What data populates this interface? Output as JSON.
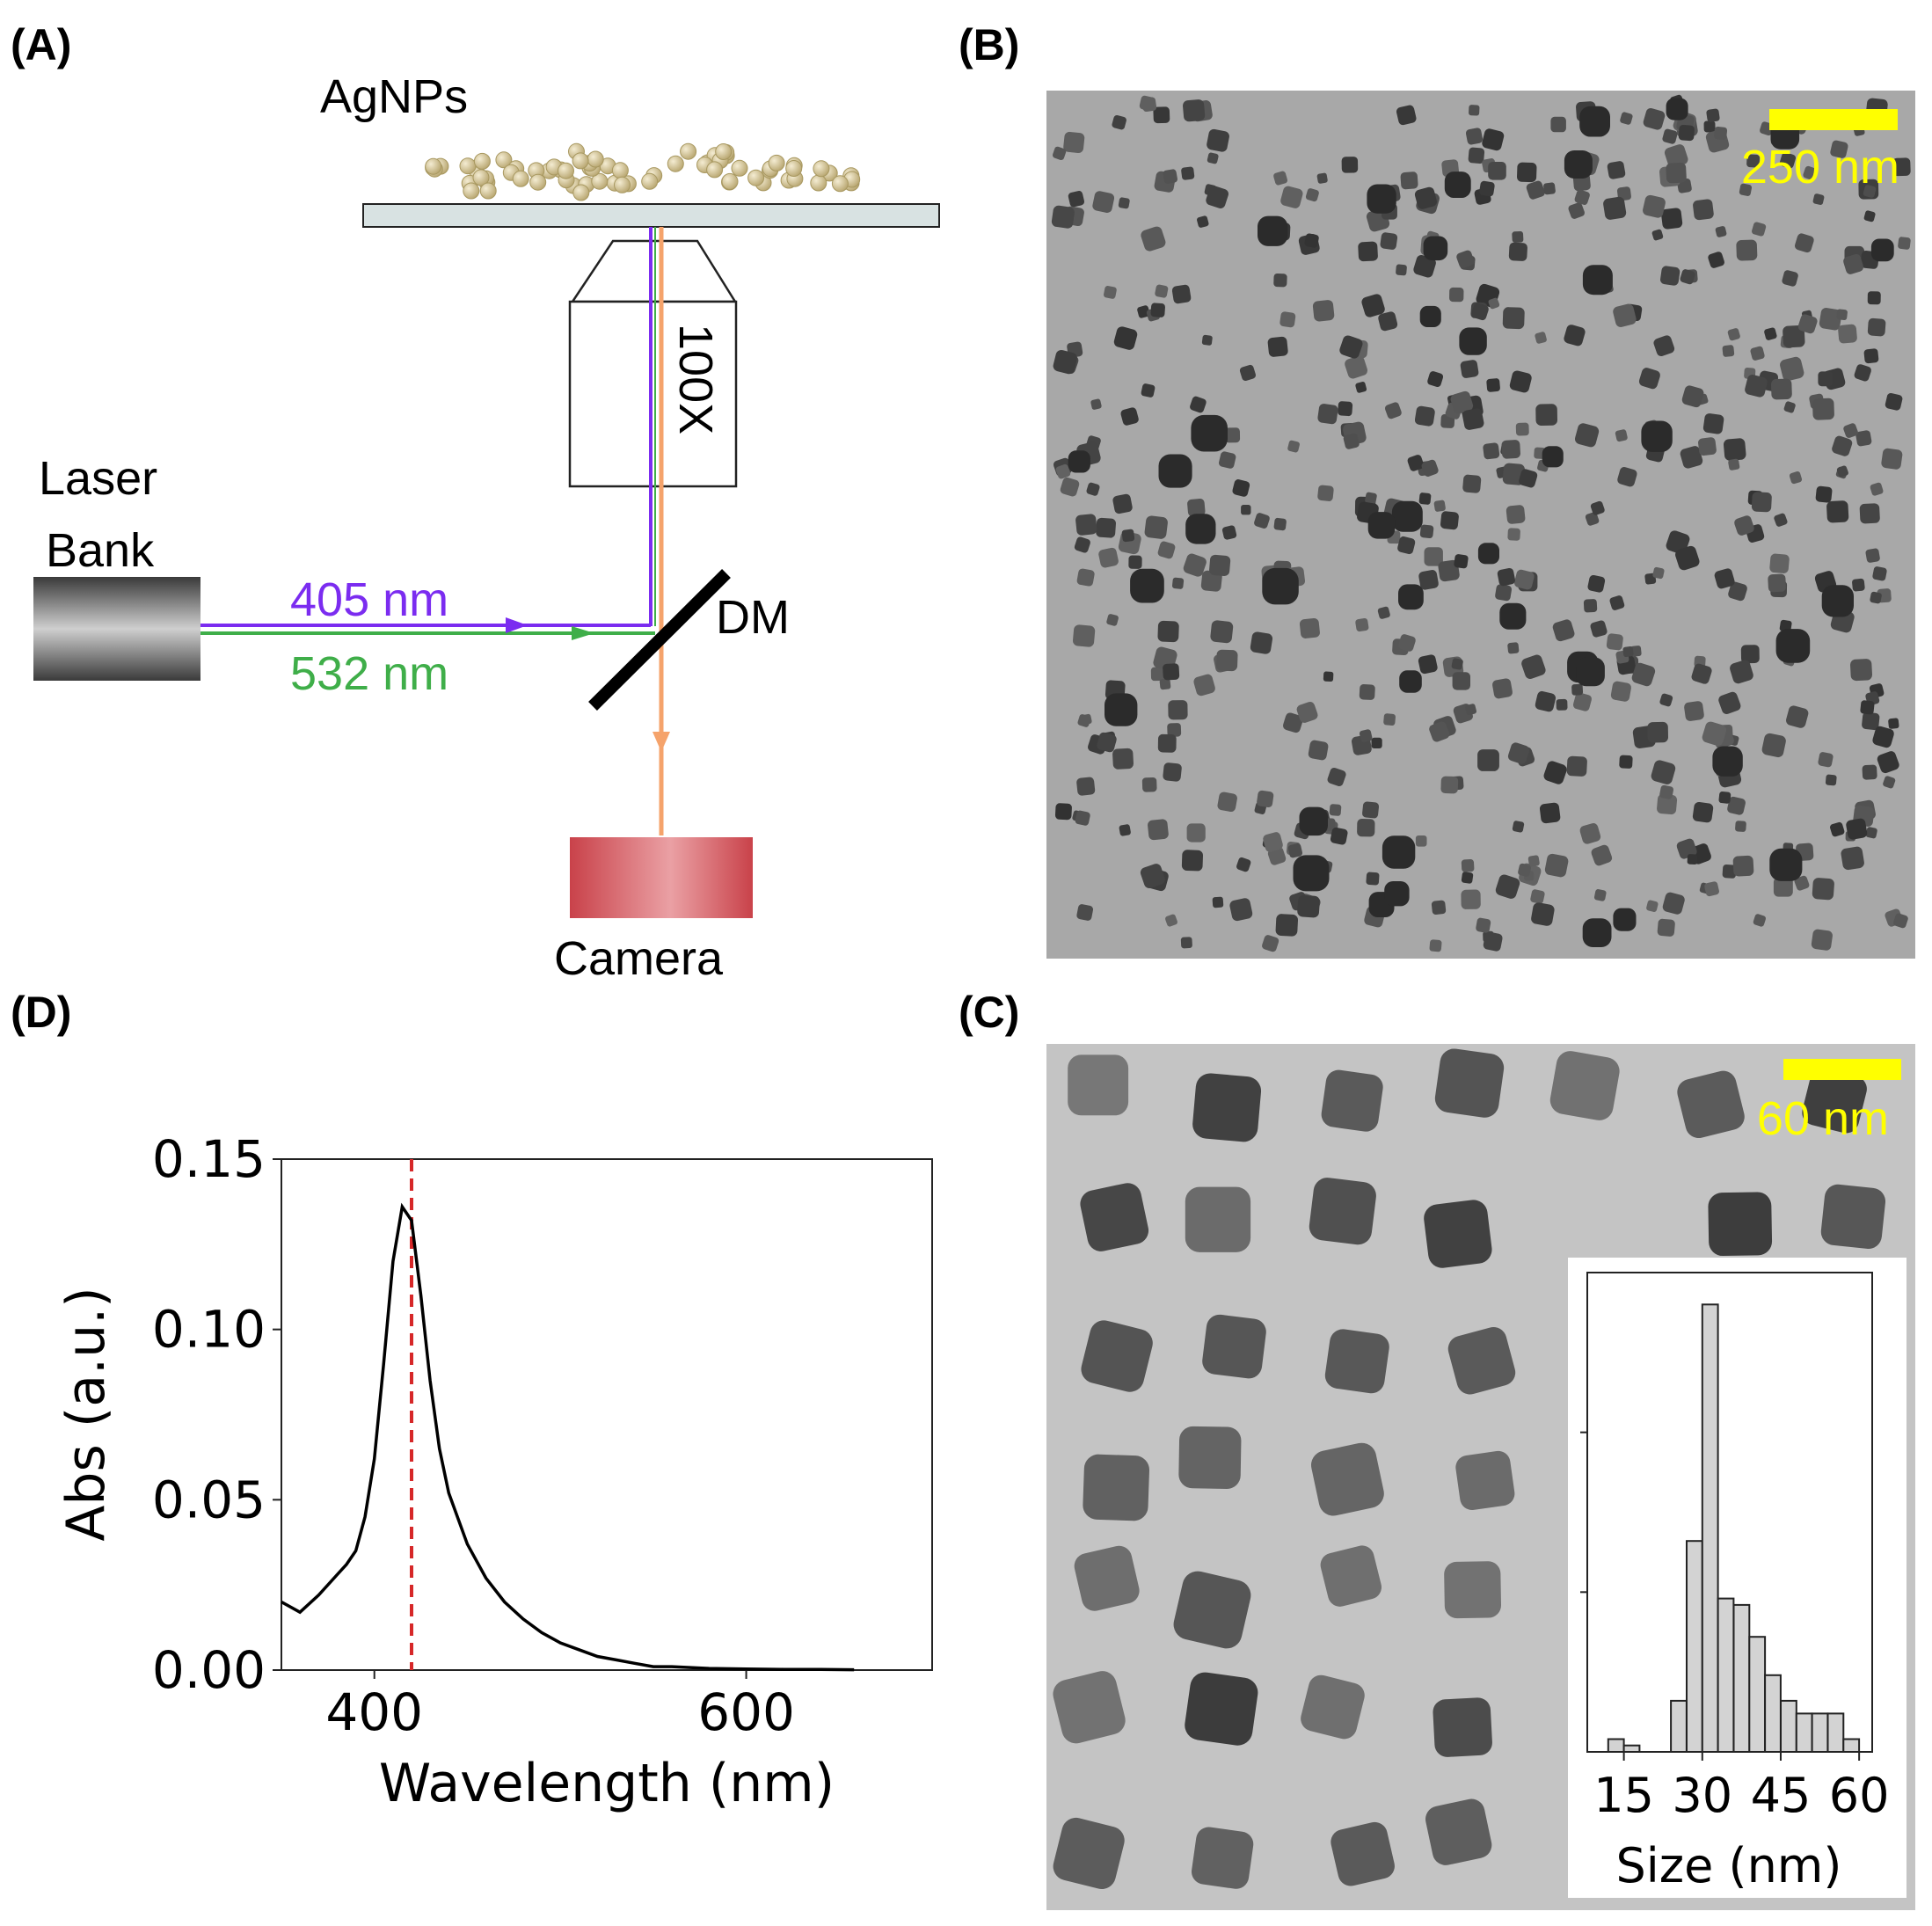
{
  "panels": {
    "a": {
      "label": "(A)",
      "sample_label": "AgNPs",
      "objective_label": "100X",
      "laser_label_line1": "Laser",
      "laser_label_line2": "Bank",
      "beam1_label": "405 nm",
      "beam2_label": "532 nm",
      "mirror_label": "DM",
      "camera_label": "Camera",
      "colors": {
        "beam1": "#7b2cf0",
        "beam2": "#3fae49",
        "emission": "#f5a36b",
        "particles": "#d9cca0",
        "slide": "#d8e2e2",
        "camera": "#d0444a"
      }
    },
    "b": {
      "label": "(B)",
      "scale_label": "250 nm",
      "scale_color": "#ffff00"
    },
    "c": {
      "label": "(C)",
      "scale_label": "60 nm",
      "scale_color": "#ffff00"
    },
    "d": {
      "label": "(D)"
    }
  },
  "chart_data": [
    {
      "panel": "(D)",
      "type": "line",
      "title": "",
      "xlabel": "Wavelength (nm)",
      "ylabel": "Abs (a.u.)",
      "xlim": [
        350,
        700
      ],
      "ylim": [
        0.0,
        0.15
      ],
      "xticks": [
        "400",
        "600"
      ],
      "yticks": [
        "0.00",
        "0.05",
        "0.10",
        "0.15"
      ],
      "grid": false,
      "series": [
        {
          "x": [
            350,
            360,
            370,
            380,
            385,
            390,
            395,
            400,
            405,
            410,
            415,
            420,
            425,
            430,
            435,
            440,
            450,
            460,
            470,
            480,
            490,
            500,
            510,
            520,
            530,
            540,
            550,
            560,
            580,
            600,
            620,
            640,
            658
          ],
          "y": [
            0.02,
            0.017,
            0.022,
            0.028,
            0.031,
            0.035,
            0.045,
            0.062,
            0.09,
            0.12,
            0.136,
            0.132,
            0.11,
            0.085,
            0.065,
            0.052,
            0.037,
            0.027,
            0.02,
            0.015,
            0.011,
            0.008,
            0.006,
            0.004,
            0.003,
            0.002,
            0.001,
            0.001,
            0.0005,
            0.0003,
            0.0002,
            0.0002,
            0.0001
          ],
          "color": "#000000"
        }
      ],
      "vline": {
        "x": 420,
        "color": "#d62728",
        "style": "dashed"
      }
    },
    {
      "panel": "(C) inset",
      "type": "bar",
      "title": "",
      "xlabel": "Size (nm)",
      "ylabel": "",
      "xticks": [
        "15",
        "30",
        "45",
        "60"
      ],
      "bin_width": 3,
      "bin_starts": [
        12,
        15,
        18,
        21,
        24,
        27,
        30,
        33,
        36,
        39,
        42,
        45,
        48,
        51,
        54,
        57
      ],
      "values": [
        2,
        1,
        0,
        0,
        8,
        33,
        70,
        24,
        23,
        18,
        12,
        8,
        6,
        6,
        6,
        2
      ],
      "ylim": [
        0,
        75
      ],
      "bar_color": "#d3d3d3"
    }
  ]
}
